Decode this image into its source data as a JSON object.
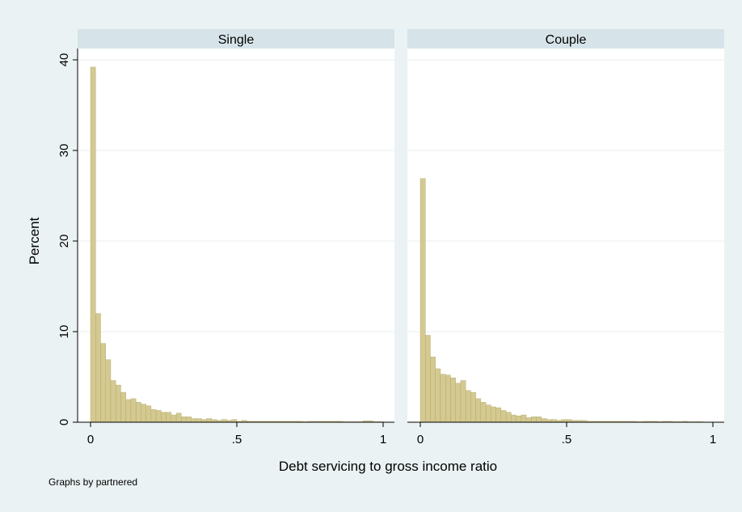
{
  "chart_data": {
    "type": "bar",
    "subtype": "histogram",
    "ylabel": "Percent",
    "xlabel": "Debt servicing to gross income ratio",
    "note": "Graphs by partnered",
    "xlim": [
      0,
      1
    ],
    "ylim": [
      0,
      40
    ],
    "bin_width": 0.01724,
    "x_ticks": [
      0,
      0.5,
      1
    ],
    "x_tick_labels": [
      "0",
      ".5",
      "1"
    ],
    "y_ticks": [
      0,
      10,
      20,
      30,
      40
    ],
    "y_tick_labels": [
      "0",
      "10",
      "20",
      "30",
      "40"
    ],
    "bar_color": "#d3c991",
    "bar_edge_color": "#b0a560",
    "strip_color": "#d6e4ea",
    "plot_bg": "#ffffff",
    "page_bg": "#eaf2f3",
    "gridlines": true,
    "panels": [
      {
        "title": "Single",
        "values": [
          39.2,
          12.0,
          8.7,
          6.9,
          4.6,
          4.1,
          3.3,
          2.5,
          2.6,
          2.2,
          2.0,
          1.8,
          1.4,
          1.3,
          1.1,
          1.1,
          0.8,
          1.0,
          0.6,
          0.6,
          0.4,
          0.4,
          0.3,
          0.4,
          0.3,
          0.2,
          0.3,
          0.2,
          0.3,
          0.1,
          0.2,
          0.1,
          0.1,
          0.1,
          0.1,
          0.1,
          0.1,
          0.1,
          0.1,
          0.1,
          0.1,
          0.1,
          0.05,
          0.1,
          0.1,
          0.1,
          0.1,
          0.1,
          0.1,
          0.1,
          0.05,
          0.05,
          0.05,
          0.05,
          0.15,
          0.15,
          0.05,
          0.05
        ]
      },
      {
        "title": "Couple",
        "values": [
          26.9,
          9.6,
          7.2,
          5.9,
          5.3,
          5.2,
          4.9,
          4.3,
          4.6,
          3.5,
          3.3,
          2.6,
          2.2,
          1.9,
          1.7,
          1.6,
          1.3,
          1.1,
          0.8,
          0.7,
          0.8,
          0.5,
          0.6,
          0.6,
          0.4,
          0.3,
          0.3,
          0.2,
          0.3,
          0.3,
          0.2,
          0.2,
          0.2,
          0.1,
          0.1,
          0.1,
          0.1,
          0.1,
          0.1,
          0.1,
          0.1,
          0.1,
          0.1,
          0.05,
          0.1,
          0.1,
          0.1,
          0.05,
          0.1,
          0.1,
          0.05,
          0.05,
          0.1,
          0.05,
          0.05,
          0.05
        ]
      }
    ]
  }
}
